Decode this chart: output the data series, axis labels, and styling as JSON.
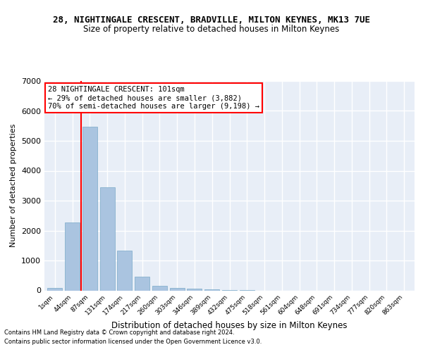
{
  "title": "28, NIGHTINGALE CRESCENT, BRADVILLE, MILTON KEYNES, MK13 7UE",
  "subtitle": "Size of property relative to detached houses in Milton Keynes",
  "xlabel": "Distribution of detached houses by size in Milton Keynes",
  "ylabel": "Number of detached properties",
  "bar_labels": [
    "1sqm",
    "44sqm",
    "87sqm",
    "131sqm",
    "174sqm",
    "217sqm",
    "260sqm",
    "303sqm",
    "346sqm",
    "389sqm",
    "432sqm",
    "475sqm",
    "518sqm",
    "561sqm",
    "604sqm",
    "648sqm",
    "691sqm",
    "734sqm",
    "777sqm",
    "820sqm",
    "863sqm"
  ],
  "bar_heights": [
    75,
    2280,
    5480,
    3450,
    1320,
    460,
    150,
    80,
    55,
    35,
    15,
    5,
    0,
    0,
    0,
    0,
    0,
    0,
    0,
    0,
    0
  ],
  "bar_color": "#aac4e0",
  "bar_edgecolor": "#7aaac8",
  "vline_x": 1.5,
  "vline_color": "red",
  "annotation_text": "28 NIGHTINGALE CRESCENT: 101sqm\n← 29% of detached houses are smaller (3,882)\n70% of semi-detached houses are larger (9,198) →",
  "annotation_box_color": "white",
  "annotation_box_edgecolor": "red",
  "ylim": [
    0,
    7000
  ],
  "yticks": [
    0,
    1000,
    2000,
    3000,
    4000,
    5000,
    6000,
    7000
  ],
  "bg_color": "#e8eef7",
  "grid_color": "white",
  "footer_line1": "Contains HM Land Registry data © Crown copyright and database right 2024.",
  "footer_line2": "Contains public sector information licensed under the Open Government Licence v3.0.",
  "title_fontsize": 9,
  "subtitle_fontsize": 8.5,
  "xlabel_fontsize": 8.5,
  "ylabel_fontsize": 8
}
